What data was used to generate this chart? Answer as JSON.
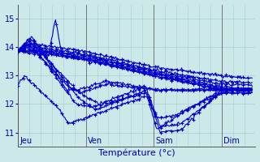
{
  "xlabel": "Température (°c)",
  "background_color": "#cce8e8",
  "line_color": "#0000cc",
  "ylim": [
    10.5,
    15.5
  ],
  "yticks": [
    11,
    12,
    13,
    14,
    15
  ],
  "xlim": [
    0,
    3.5
  ],
  "day_labels": [
    "Jeu",
    "Ven",
    "Sam",
    "Dim"
  ],
  "day_positions": [
    0.0,
    1.0,
    2.0,
    3.0
  ],
  "grid_color": "#aad4d4",
  "vline_color": "#777777",
  "xlabel_color": "#0000aa",
  "tick_color": "#0000aa",
  "xlabel_fontsize": 8,
  "tick_fontsize": 7,
  "day_label_fontsize": 7,
  "linewidth": 0.8,
  "markersize": 3
}
